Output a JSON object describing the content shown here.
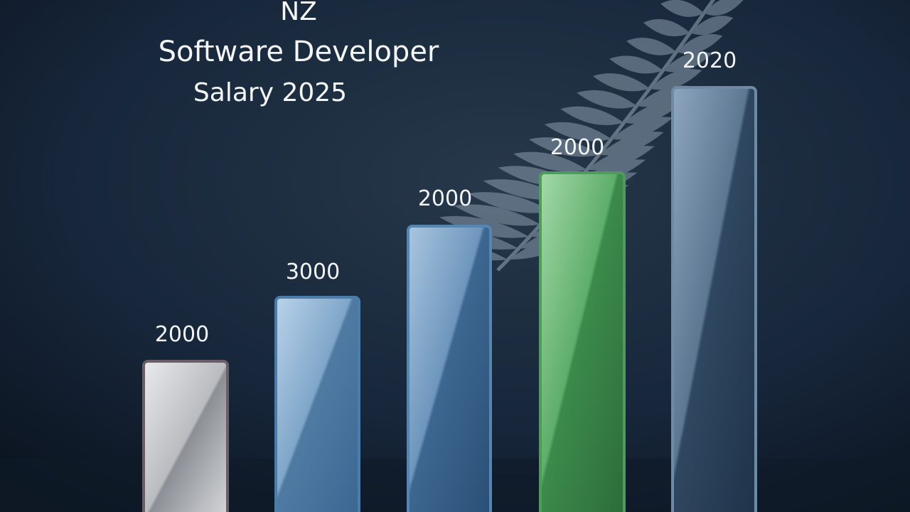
{
  "header": {
    "title_lines": [
      "NZ",
      "Software Developer",
      "Salary 2025"
    ]
  },
  "bars": [
    {
      "label": "2000"
    },
    {
      "label": "3000"
    },
    {
      "label": "2000"
    },
    {
      "label": "2000"
    },
    {
      "label": "2020"
    }
  ]
}
